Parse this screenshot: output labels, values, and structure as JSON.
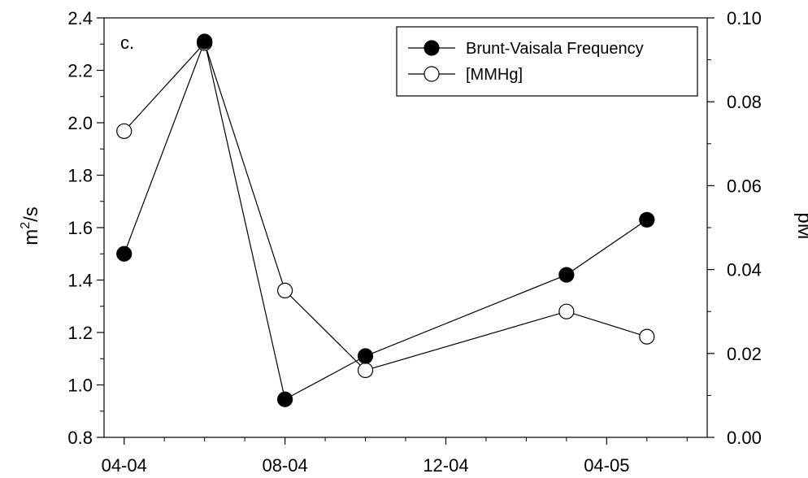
{
  "chart_data": {
    "type": "line",
    "panel_label": "c.",
    "xlabel": "",
    "x_tick_labels": [
      "04-04",
      "08-04",
      "12-04",
      "04-05"
    ],
    "x_tick_months": [
      0,
      4,
      8,
      12
    ],
    "xlim_months": [
      -0.5,
      14.5
    ],
    "ylabel_left": "m2/s",
    "ylim_left": [
      0.8,
      2.4
    ],
    "yticks_left": [
      "0.8",
      "1.0",
      "1.2",
      "1.4",
      "1.6",
      "1.8",
      "2.0",
      "2.2",
      "2.4"
    ],
    "ylabel_right": "pM",
    "ylim_right": [
      0.0,
      0.1
    ],
    "yticks_right": [
      "0.00",
      "0.02",
      "0.04",
      "0.06",
      "0.08",
      "0.10"
    ],
    "legend_position": "top-right",
    "series": [
      {
        "name": "Brunt-Vaisala Frequency",
        "axis": "left",
        "marker": "filled-circle",
        "x_months": [
          0,
          2,
          4,
          6,
          11,
          13
        ],
        "values": [
          1.5,
          2.31,
          0.945,
          1.11,
          1.42,
          1.63
        ]
      },
      {
        "name": "[MMHg]",
        "axis": "right",
        "marker": "open-circle",
        "x_months": [
          0,
          2,
          4,
          6,
          11,
          13
        ],
        "values": [
          0.073,
          0.094,
          0.035,
          0.016,
          0.03,
          0.024
        ]
      }
    ]
  }
}
